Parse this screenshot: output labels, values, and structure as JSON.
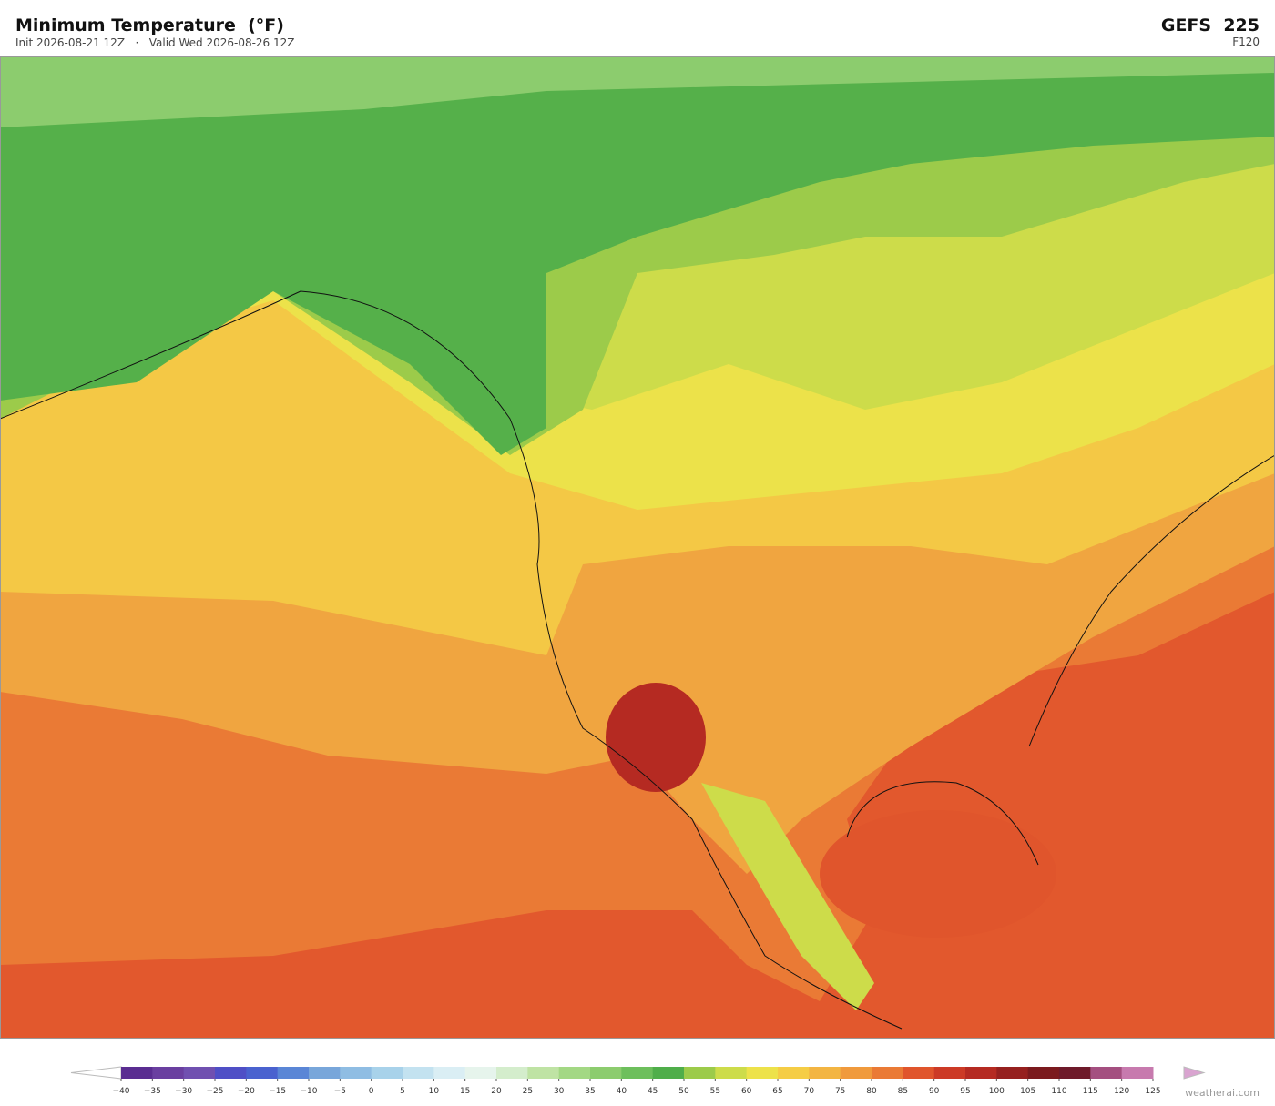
{
  "header": {
    "title": "Minimum Temperature  (°F)",
    "subtitle": "Init 2026-08-21 12Z   ·   Valid Wed 2026-08-26 12Z",
    "model": "GEFS  225",
    "forecast_hour": "F120"
  },
  "colorbar": {
    "ticks": [
      {
        "value": -40,
        "label": "−40"
      },
      {
        "value": -35,
        "label": "−35"
      },
      {
        "value": -30,
        "label": "−30"
      },
      {
        "value": -25,
        "label": "−25"
      },
      {
        "value": -20,
        "label": "−20"
      },
      {
        "value": -15,
        "label": "−15"
      },
      {
        "value": -10,
        "label": "−10"
      },
      {
        "value": -5,
        "label": "−5"
      },
      0,
      5,
      10,
      15,
      20,
      25,
      30,
      35,
      40,
      45,
      50,
      55,
      60,
      65,
      70,
      75,
      80,
      85,
      90,
      95,
      100,
      105,
      110,
      115,
      120,
      125
    ],
    "colors": [
      "#5a2d91",
      "#6a3fa0",
      "#7050b0",
      "#4f4fc6",
      "#4a62cf",
      "#5a86d6",
      "#78a6da",
      "#8fbde3",
      "#a8d2ea",
      "#c3e2f0",
      "#daeef4",
      "#e6f4ec",
      "#d4edcc",
      "#bfe3a4",
      "#a3d884",
      "#8ccc6e",
      "#6dbf5c",
      "#4fae4a",
      "#9ccb4a",
      "#cddc4a",
      "#ede24a",
      "#f5cd45",
      "#f3b542",
      "#f09a3c",
      "#ea7a35",
      "#e0552c",
      "#cc3a26",
      "#b52a22",
      "#96201f",
      "#7b1a1e",
      "#6e1a2a",
      "#a44f80",
      "#c77aae"
    ],
    "under_color": "#ffffff",
    "over_color": "#d9a4d0"
  },
  "credit": "weatherai.com"
}
